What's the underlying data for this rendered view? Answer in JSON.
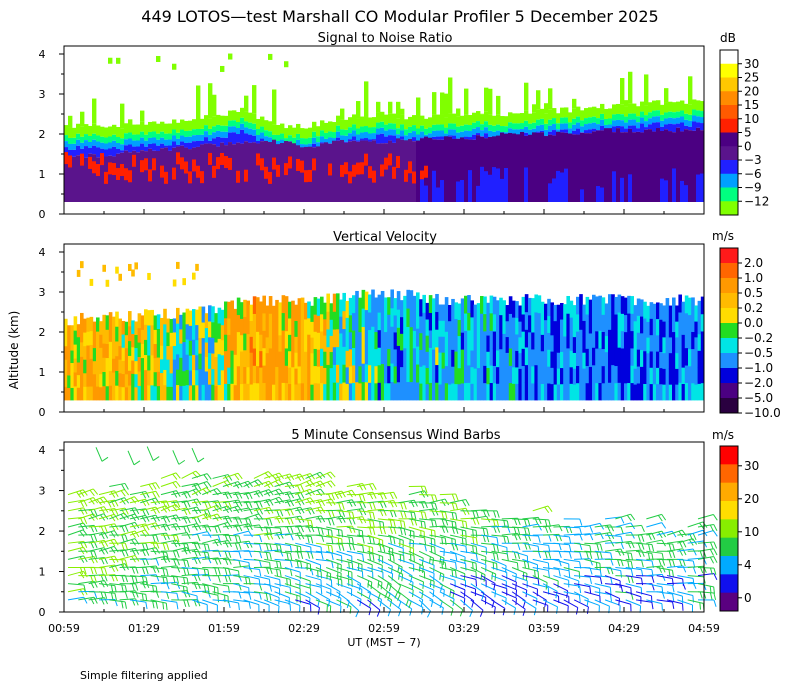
{
  "figure": {
    "title": "449 LOTOS—test Marshall CO Modular Profiler  5 December 2025",
    "ylabel": "Altitude (km)",
    "xlabel": "UT  (MST − 7)",
    "footnote": "Simple filtering applied"
  },
  "chart_data": [
    {
      "type": "heatmap",
      "title": "Signal to Noise Ratio",
      "x": [
        "00:59",
        "01:29",
        "01:59",
        "02:29",
        "02:59",
        "03:29",
        "03:59",
        "04:29",
        "04:59"
      ],
      "xlim": [
        "00:59",
        "04:59"
      ],
      "ylim": [
        0,
        4.2
      ],
      "yticks": [
        "0",
        "1",
        "2",
        "3",
        "4"
      ],
      "colorbar": {
        "unit": "dB",
        "ticks": [
          "30",
          "25",
          "20",
          "15",
          "10",
          "5",
          "0",
          "−3",
          "−6",
          "−9",
          "−12"
        ],
        "colors": [
          "#ffffff",
          "#ffff00",
          "#ffc800",
          "#ff8c00",
          "#ff5a00",
          "#ff2000",
          "#4b0082",
          "#5a148c",
          "#2020ff",
          "#00a0ff",
          "#00ff80",
          "#80ff00"
        ]
      },
      "profile": {
        "time_frac": [
          0,
          0.08,
          0.15,
          0.22,
          0.28,
          0.33,
          0.38,
          0.43,
          0.5,
          0.56,
          0.63,
          0.7,
          0.78,
          0.85,
          0.92,
          1.0
        ],
        "boundary_top_km": [
          2.2,
          2.2,
          2.3,
          2.4,
          2.6,
          2.2,
          2.2,
          2.4,
          2.5,
          2.4,
          2.5,
          2.5,
          2.6,
          2.7,
          2.8,
          2.8
        ],
        "mixed_top_km": [
          1.3,
          1.4,
          1.5,
          1.6,
          1.7,
          1.7,
          1.6,
          1.7,
          1.7,
          1.8,
          1.8,
          1.9,
          1.9,
          2.0,
          2.0,
          2.0
        ]
      }
    },
    {
      "type": "heatmap",
      "title": "Vertical Velocity",
      "x": [
        "00:59",
        "01:29",
        "01:59",
        "02:29",
        "02:59",
        "03:29",
        "03:59",
        "04:29",
        "04:59"
      ],
      "xlim": [
        "00:59",
        "04:59"
      ],
      "ylim": [
        0,
        4.2
      ],
      "yticks": [
        "0",
        "1",
        "2",
        "3",
        "4"
      ],
      "colorbar": {
        "unit": "m/s",
        "ticks": [
          "2.0",
          "1.0",
          "0.5",
          "0.2",
          "0.0",
          "−0.2",
          "−0.5",
          "−1.0",
          "−2.0",
          "−5.0",
          "−10.0"
        ],
        "colors": [
          "#ff1a1a",
          "#ff6600",
          "#ff9900",
          "#ffbb00",
          "#ffdd00",
          "#22dd22",
          "#00e5e5",
          "#1e90ff",
          "#0000dd",
          "#4b0082",
          "#2a0040"
        ]
      },
      "segments": {
        "time_frac": [
          0,
          0.1,
          0.2,
          0.3,
          0.4,
          0.5,
          0.6,
          0.7,
          0.8,
          0.9,
          1.0
        ],
        "mean_w_ms": [
          0.4,
          0.3,
          -0.3,
          0.6,
          0.2,
          -0.6,
          -0.5,
          -0.7,
          -0.8,
          -0.9,
          -0.8
        ],
        "top_km": [
          2.3,
          2.4,
          2.5,
          2.8,
          2.8,
          3.0,
          2.8,
          2.8,
          2.8,
          2.8,
          2.8
        ]
      }
    },
    {
      "type": "scatter",
      "title": "5 Minute Consensus Wind Barbs",
      "x": [
        "00:59",
        "01:29",
        "01:59",
        "02:29",
        "02:59",
        "03:29",
        "03:59",
        "04:29",
        "04:59"
      ],
      "xlim": [
        "00:59",
        "04:59"
      ],
      "ylim": [
        0,
        4.2
      ],
      "yticks": [
        "0",
        "1",
        "2",
        "3",
        "4"
      ],
      "colorbar": {
        "unit": "m/s",
        "ticks": [
          "30",
          "20",
          "10",
          "4",
          "0"
        ],
        "colors": [
          "#ff0000",
          "#ff6600",
          "#ffaa00",
          "#ffdd00",
          "#88ee00",
          "#22cc44",
          "#00aaff",
          "#1010ee",
          "#5a0080"
        ]
      },
      "wind": {
        "time_frac": [
          0,
          0.25,
          0.5,
          0.75,
          1.0
        ],
        "speed_low_ms": [
          8,
          5,
          5,
          4,
          6
        ],
        "speed_high_ms": [
          12,
          10,
          12,
          10,
          10
        ],
        "dir_low_deg": [
          270,
          285,
          315,
          300,
          280
        ],
        "dir_high_deg": [
          250,
          250,
          260,
          250,
          245
        ]
      }
    }
  ]
}
